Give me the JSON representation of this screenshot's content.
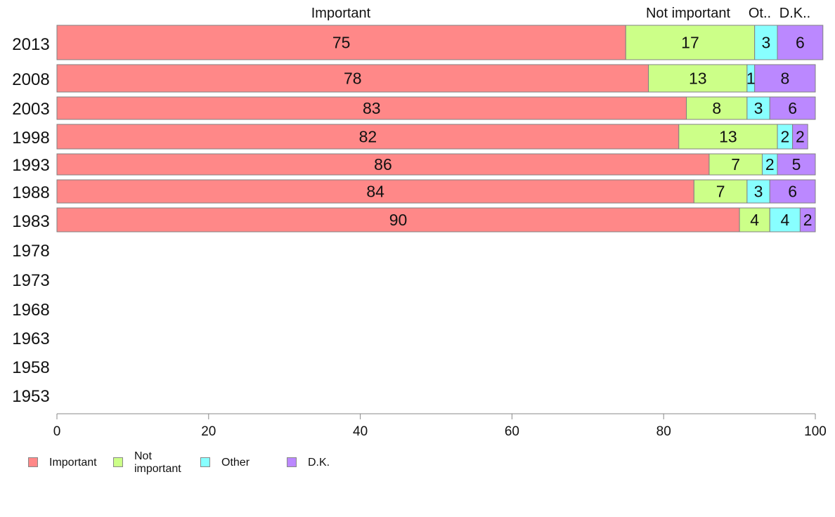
{
  "chart_data": {
    "type": "bar",
    "orientation": "horizontal",
    "stacked": true,
    "categories": [
      "2013",
      "2008",
      "2003",
      "1998",
      "1993",
      "1988",
      "1983",
      "1978",
      "1973",
      "1968",
      "1963",
      "1958",
      "1953"
    ],
    "series": [
      {
        "name": "Important",
        "color": "#ff8888",
        "values": [
          75,
          78,
          83,
          82,
          86,
          84,
          90,
          null,
          null,
          null,
          null,
          null,
          null
        ]
      },
      {
        "name": "Not important",
        "color": "#ccff88",
        "values": [
          17,
          13,
          8,
          13,
          7,
          7,
          4,
          null,
          null,
          null,
          null,
          null,
          null
        ]
      },
      {
        "name": "Other",
        "color": "#88ffff",
        "values": [
          3,
          1,
          3,
          2,
          2,
          3,
          4,
          null,
          null,
          null,
          null,
          null,
          null
        ]
      },
      {
        "name": "D.K.",
        "color": "#bb88ff",
        "values": [
          6,
          8,
          6,
          2,
          5,
          6,
          2,
          null,
          null,
          null,
          null,
          null,
          null
        ]
      }
    ],
    "top_labels": [
      "Important",
      "Not important",
      "Ot..",
      "D.K.."
    ],
    "xlim": [
      0,
      100
    ],
    "xticks": [
      "0",
      "20",
      "40",
      "60",
      "80",
      "100"
    ],
    "grid": false,
    "legend_position": "bottom"
  },
  "legend": [
    {
      "label": "Important",
      "color": "#ff8888"
    },
    {
      "label": "Not important",
      "line1": "Not",
      "line2": "important",
      "color": "#ccff88"
    },
    {
      "label": "Other",
      "color": "#88ffff"
    },
    {
      "label": "D.K.",
      "color": "#bb88ff"
    }
  ]
}
